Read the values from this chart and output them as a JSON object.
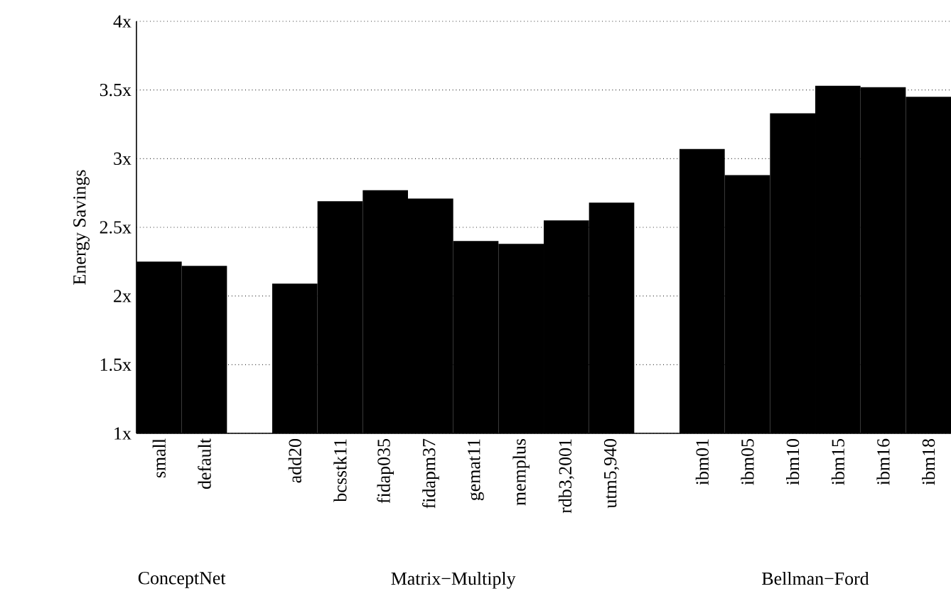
{
  "chart_data": {
    "type": "bar",
    "ylabel": "Energy Savings",
    "categories": [
      "small",
      "default",
      null,
      "add20",
      "bcsstk11",
      "fidap035",
      "fidapm37",
      "gemat11",
      "memplus",
      "rdb3,2001",
      "utm5,940",
      null,
      "ibm01",
      "ibm05",
      "ibm10",
      "ibm15",
      "ibm16",
      "ibm18"
    ],
    "values": [
      2.25,
      2.22,
      null,
      2.09,
      2.69,
      2.77,
      2.71,
      2.4,
      2.38,
      2.55,
      2.68,
      null,
      3.07,
      2.88,
      3.33,
      3.53,
      3.52,
      3.45
    ],
    "color": "#000000",
    "ylim": [
      1,
      4
    ],
    "yticks": [
      {
        "value": 1,
        "label": "1x"
      },
      {
        "value": 1.5,
        "label": "1.5x"
      },
      {
        "value": 2,
        "label": "2x"
      },
      {
        "value": 2.5,
        "label": "2.5x"
      },
      {
        "value": 3,
        "label": "3x"
      },
      {
        "value": 3.5,
        "label": "3.5x"
      },
      {
        "value": 4,
        "label": "4x"
      }
    ],
    "grid": "y",
    "annotations": [
      "ConceptNet",
      "Matrix−Multiply",
      "Bellman−Ford"
    ]
  }
}
